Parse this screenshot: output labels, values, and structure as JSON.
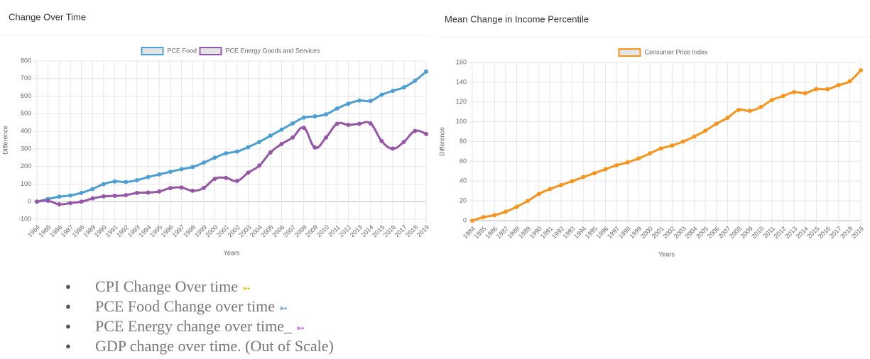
{
  "chart_data": [
    {
      "type": "line",
      "title": "Change Over Time",
      "x_label": "Years",
      "y_label": "Difference",
      "categories": [
        "1984",
        "1985",
        "1986",
        "1987",
        "1988",
        "1989",
        "1990",
        "1991",
        "1992",
        "1993",
        "1994",
        "1995",
        "1996",
        "1997",
        "1998",
        "1999",
        "2000",
        "2001",
        "2002",
        "2003",
        "2004",
        "2005",
        "2006",
        "2007",
        "2008",
        "2009",
        "2010",
        "2011",
        "2012",
        "2013",
        "2014",
        "2015",
        "2016",
        "2017",
        "2018",
        "2019"
      ],
      "series": [
        {
          "name": "PCE Food",
          "color": "#4b9fd3",
          "values": [
            0,
            15,
            28,
            35,
            50,
            72,
            100,
            115,
            112,
            122,
            140,
            155,
            170,
            185,
            197,
            222,
            250,
            275,
            285,
            310,
            340,
            375,
            410,
            445,
            478,
            485,
            497,
            530,
            557,
            575,
            573,
            608,
            630,
            650,
            688,
            740
          ]
        },
        {
          "name": "PCE Energy Goods and Services",
          "color": "#9656a8",
          "values": [
            0,
            5,
            -15,
            -8,
            0,
            18,
            30,
            33,
            37,
            50,
            52,
            58,
            77,
            80,
            62,
            78,
            130,
            135,
            118,
            165,
            205,
            280,
            328,
            365,
            420,
            308,
            365,
            443,
            437,
            443,
            445,
            345,
            302,
            340,
            402,
            385
          ]
        }
      ],
      "ylim": [
        -100,
        800
      ],
      "yticks": [
        -100,
        0,
        100,
        200,
        300,
        400,
        500,
        600,
        700,
        800
      ],
      "grid": true,
      "legend": "top"
    },
    {
      "type": "line",
      "title": "Mean Change in Income Percentile",
      "x_label": "Years",
      "y_label": "Difference",
      "categories": [
        "1984",
        "1985",
        "1986",
        "1987",
        "1988",
        "1989",
        "1990",
        "1991",
        "1992",
        "1993",
        "1994",
        "1995",
        "1996",
        "1997",
        "1998",
        "1999",
        "2000",
        "2001",
        "2002",
        "2003",
        "2004",
        "2005",
        "2006",
        "2007",
        "2008",
        "2009",
        "2010",
        "2011",
        "2012",
        "2013",
        "2014",
        "2015",
        "2016",
        "2017",
        "2018",
        "2019"
      ],
      "series": [
        {
          "name": "Consumer Price Index",
          "color": "#f7941d",
          "values": [
            0,
            3.5,
            5.5,
            9,
            14,
            20,
            27,
            32,
            36,
            40,
            44,
            48,
            52,
            56,
            59,
            63,
            68,
            73,
            76,
            80,
            85,
            91,
            98,
            104,
            112,
            111,
            115,
            122,
            126,
            130,
            129,
            133,
            133,
            137,
            141,
            152
          ]
        }
      ],
      "ylim": [
        0,
        160
      ],
      "yticks": [
        0,
        20,
        40,
        60,
        80,
        100,
        120,
        140,
        160
      ],
      "grid": true,
      "legend": "top"
    }
  ],
  "list": [
    {
      "text": "CPI Change Over time",
      "icon": "➳",
      "icon_color": "#e8b400"
    },
    {
      "text": "PCE Food Change over time",
      "icon": "➳",
      "icon_color": "#3a8ad6"
    },
    {
      "text": "PCE Energy change over time_",
      "icon": "➳",
      "icon_color": "#b040d8"
    },
    {
      "text": "GDP change over time. (Out of Scale)"
    }
  ]
}
